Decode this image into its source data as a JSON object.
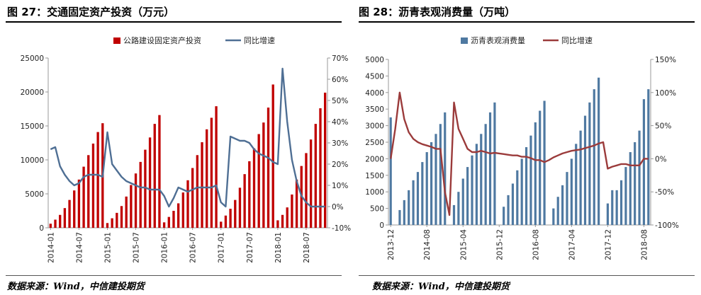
{
  "left": {
    "title": "图 27：交通固定资产投资（万元）",
    "source": "数据来源：Wind，中信建投期货",
    "chart_data": {
      "type": "bar",
      "legend": [
        "公路建设固定资产投资",
        "同比增速"
      ],
      "y_left_ticks": [
        "0",
        "5000",
        "10000",
        "15000",
        "20000",
        "25000"
      ],
      "y_right_ticks": [
        "-10%",
        "0%",
        "10%",
        "20%",
        "30%",
        "40%",
        "50%",
        "60%",
        "70%"
      ],
      "x_tick_labels": [
        "2014-01",
        "2014-07",
        "2015-01",
        "2015-07",
        "2016-01",
        "2016-07",
        "2017-01",
        "2017-07",
        "2018-01",
        "2018-07"
      ],
      "ylim_left": [
        0,
        25000
      ],
      "ylim_right": [
        -10,
        70
      ],
      "bar_color": "#c00000",
      "line_color": "#4f6f94",
      "bars": [
        600,
        1200,
        1900,
        2900,
        4100,
        5500,
        7100,
        9000,
        10700,
        12400,
        14100,
        15400,
        700,
        1400,
        2200,
        3200,
        4600,
        6300,
        8000,
        9700,
        11500,
        13300,
        15300,
        16600,
        800,
        1600,
        2500,
        3600,
        5200,
        7000,
        8800,
        10700,
        12600,
        14500,
        16200,
        17900,
        900,
        1800,
        2800,
        4100,
        5900,
        7900,
        9800,
        11700,
        13800,
        15500,
        17700,
        21100,
        1100,
        1900,
        3000,
        4900,
        7100,
        9100,
        11000,
        13000,
        15300,
        17600,
        19900
      ],
      "growth": [
        27,
        28,
        19,
        15,
        12,
        10,
        11,
        14,
        15,
        15,
        15,
        14,
        35,
        20,
        17,
        14,
        12,
        11,
        10,
        9,
        9,
        8,
        8,
        8,
        5,
        0,
        4,
        9,
        8,
        7,
        8,
        9,
        9,
        9,
        9,
        10,
        2,
        0,
        33,
        32,
        31,
        31,
        30,
        27,
        25,
        24,
        23,
        21,
        20,
        65,
        40,
        22,
        12,
        5,
        2,
        0,
        0,
        0,
        0
      ]
    }
  },
  "right": {
    "title": "图 28：沥青表观消费量（万吨）",
    "source": "数据来源：Wind，中信建投期货",
    "chart_data": {
      "type": "bar",
      "legend": [
        "沥青表观消费量",
        "同比增速"
      ],
      "y_left_ticks": [
        "0",
        "500",
        "1000",
        "1500",
        "2000",
        "2500",
        "3000",
        "3500",
        "4000",
        "4500",
        "5000"
      ],
      "y_right_ticks": [
        "-100%",
        "-50%",
        "0%",
        "50%",
        "100%",
        "150%"
      ],
      "x_tick_labels": [
        "2013-12",
        "2014-08",
        "2015-04",
        "2015-12",
        "2016-08",
        "2017-04",
        "2017-12",
        "2018-08"
      ],
      "ylim_left": [
        0,
        5000
      ],
      "ylim_right": [
        -100,
        150
      ],
      "bar_color": "#4f79a1",
      "line_color": "#9b3b3b",
      "bars": [
        3250,
        null,
        450,
        750,
        1050,
        1350,
        1600,
        1900,
        2200,
        2500,
        2750,
        3050,
        3400,
        null,
        600,
        1000,
        1400,
        1750,
        2100,
        2450,
        2750,
        3050,
        3400,
        3700,
        null,
        550,
        900,
        1250,
        1650,
        2000,
        2350,
        2700,
        3100,
        3450,
        3750,
        null,
        500,
        850,
        1200,
        1600,
        2000,
        2450,
        2850,
        3300,
        3700,
        4100,
        4450,
        null,
        650,
        1050,
        1050,
        1350,
        1750,
        2200,
        2500,
        2850,
        3800,
        4100
      ],
      "growth": [
        0,
        45,
        100,
        60,
        40,
        30,
        25,
        22,
        20,
        18,
        15,
        15,
        -50,
        -85,
        85,
        45,
        30,
        15,
        10,
        10,
        12,
        10,
        8,
        9,
        8,
        7,
        6,
        5,
        5,
        3,
        3,
        1,
        -2,
        -2,
        -5,
        -2,
        2,
        5,
        8,
        10,
        12,
        13,
        14,
        16,
        18,
        20,
        23,
        25,
        -15,
        -12,
        -10,
        -8,
        -8,
        -10,
        -10,
        -10,
        0,
        0
      ]
    }
  }
}
